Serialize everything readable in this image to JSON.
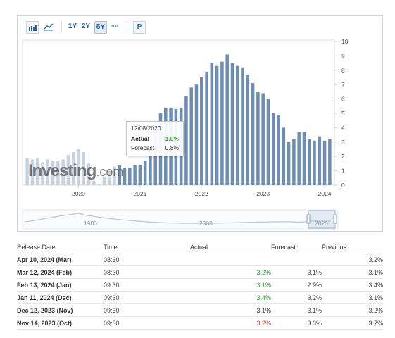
{
  "toolbar": {
    "ranges": [
      "1Y",
      "2Y",
      "5Y",
      "max"
    ],
    "selected_range": "5Y",
    "p_label": "P",
    "icons": [
      "bar-chart-icon",
      "line-chart-icon"
    ]
  },
  "chart_data": {
    "type": "bar",
    "y_ticks": [
      "0",
      "1",
      "2",
      "3",
      "4",
      "5",
      "6",
      "7",
      "8",
      "9",
      "10"
    ],
    "ylim": [
      0,
      10
    ],
    "x_ticks": [
      "2020",
      "2021",
      "2022",
      "2023",
      "2024"
    ],
    "grid": false,
    "y_axis_side": "right",
    "months": [
      "2019-03",
      "2019-04",
      "2019-05",
      "2019-06",
      "2019-07",
      "2019-08",
      "2019-09",
      "2019-10",
      "2019-11",
      "2019-12",
      "2020-01",
      "2020-02",
      "2020-03",
      "2020-04",
      "2020-05",
      "2020-06",
      "2020-07",
      "2020-08",
      "2020-09",
      "2020-10",
      "2020-11",
      "2020-12",
      "2021-01",
      "2021-02",
      "2021-03",
      "2021-04",
      "2021-05",
      "2021-06",
      "2021-07",
      "2021-08",
      "2021-09",
      "2021-10",
      "2021-11",
      "2021-12",
      "2022-01",
      "2022-02",
      "2022-03",
      "2022-04",
      "2022-05",
      "2022-06",
      "2022-07",
      "2022-08",
      "2022-09",
      "2022-10",
      "2022-11",
      "2022-12",
      "2023-01",
      "2023-02",
      "2023-03",
      "2023-04",
      "2023-05",
      "2023-06",
      "2023-07",
      "2023-08",
      "2023-09",
      "2023-10",
      "2023-11",
      "2023-12",
      "2024-01",
      "2024-02"
    ],
    "values": [
      1.9,
      1.8,
      1.9,
      1.6,
      1.8,
      1.7,
      1.7,
      1.8,
      2.1,
      2.3,
      2.5,
      2.3,
      1.5,
      0.3,
      0.1,
      0.6,
      1.0,
      1.3,
      1.4,
      1.2,
      1.2,
      1.4,
      1.4,
      1.7,
      2.6,
      4.2,
      5.0,
      5.4,
      5.4,
      5.3,
      5.4,
      6.2,
      6.8,
      7.0,
      7.5,
      7.9,
      8.5,
      8.3,
      8.6,
      9.1,
      8.5,
      8.3,
      8.2,
      7.7,
      7.1,
      6.5,
      6.4,
      6.0,
      5.0,
      4.9,
      4.0,
      3.0,
      3.2,
      3.7,
      3.7,
      3.2,
      3.1,
      3.4,
      3.1,
      3.2
    ],
    "faded_before": "2020-09"
  },
  "tooltip": {
    "date": "12/08/2020",
    "actual_label": "Actual",
    "actual_value": "1.0%",
    "forecast_label": "Forecast",
    "forecast_value": "0.8%"
  },
  "navigator": {
    "labels": [
      "1980",
      "2000",
      "2020"
    ]
  },
  "watermark": {
    "brand": "Investing",
    "suffix": ".com"
  },
  "colors": {
    "bar": "#6d8db3",
    "bar_faded": "#c9d4e2",
    "positive": "#2ea32e",
    "negative": "#e03030"
  },
  "table": {
    "headers": {
      "release_date": "Release Date",
      "time": "Time",
      "actual": "Actual",
      "forecast": "Forecast",
      "previous": "Previous"
    },
    "rows": [
      {
        "release_date": "Apr 10, 2024 (Mar)",
        "time": "08:30",
        "actual": "",
        "actual_status": "neutral",
        "forecast": "",
        "previous": "3.2%"
      },
      {
        "release_date": "Mar 12, 2024 (Feb)",
        "time": "08:30",
        "actual": "3.2%",
        "actual_status": "good",
        "forecast": "3.1%",
        "previous": "3.1%"
      },
      {
        "release_date": "Feb 13, 2024 (Jan)",
        "time": "09:30",
        "actual": "3.1%",
        "actual_status": "good",
        "forecast": "2.9%",
        "previous": "3.4%"
      },
      {
        "release_date": "Jan 11, 2024 (Dec)",
        "time": "09:30",
        "actual": "3.4%",
        "actual_status": "good",
        "forecast": "3.2%",
        "previous": "3.1%"
      },
      {
        "release_date": "Dec 12, 2023 (Nov)",
        "time": "09:30",
        "actual": "3.1%",
        "actual_status": "neutral",
        "forecast": "3.1%",
        "previous": "3.2%"
      },
      {
        "release_date": "Nov 14, 2023 (Oct)",
        "time": "09:30",
        "actual": "3.2%",
        "actual_status": "bad",
        "forecast": "3.3%",
        "previous": "3.7%"
      }
    ]
  }
}
